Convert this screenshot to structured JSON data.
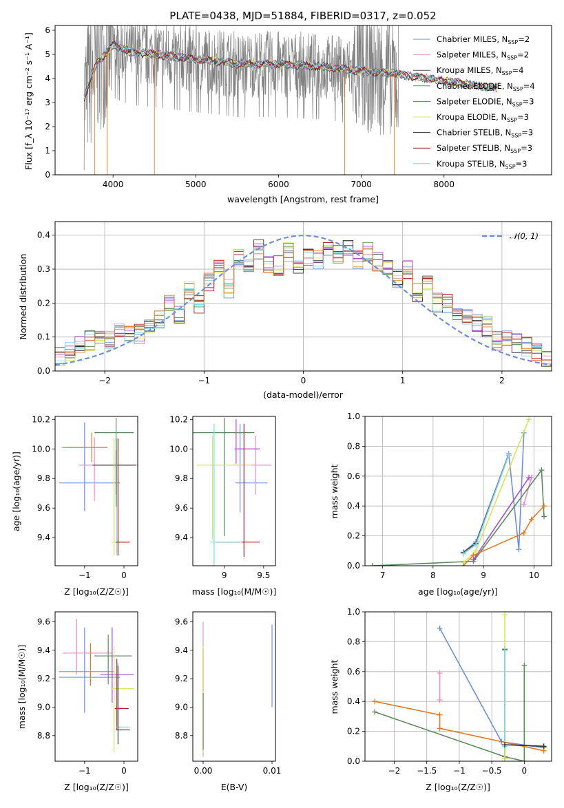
{
  "chart_data": [
    {
      "id": "spectrum",
      "type": "line",
      "title": "PLATE=0438, MJD=51884, FIBERID=0317, z=0.052",
      "xlabel": "wavelength [Angstrom, rest frame]",
      "ylabel": "Flux [f_λ 10⁻¹⁷ erg cm⁻² s⁻¹ A⁻¹]",
      "xlim": [
        3300,
        9300
      ],
      "ylim": [
        0,
        6.2
      ],
      "xticks": [
        4000,
        5000,
        6000,
        7000,
        8000
      ],
      "yticks": [
        0,
        1,
        2,
        3,
        4,
        5,
        6
      ],
      "data_anchor": {
        "x": [
          3650,
          3800,
          4000,
          4200,
          4500,
          5000,
          5500,
          6000,
          6500,
          7000,
          7400,
          7800,
          8200,
          8600
        ],
        "y": [
          3.2,
          4.6,
          5.4,
          5.1,
          5.0,
          4.8,
          4.6,
          4.6,
          4.5,
          4.3,
          4.2,
          4.0,
          3.8,
          3.6
        ]
      },
      "legend_location": "upper right",
      "legend": [
        {
          "label": "Chabrier MILES, N",
          "sub": "SSP",
          "suffix": "=2",
          "color": "#6a8fdc"
        },
        {
          "label": "Salpeter MILES, N",
          "sub": "SSP",
          "suffix": "=2",
          "color": "#e88fc4"
        },
        {
          "label": "Kroupa MILES, N",
          "sub": "SSP",
          "suffix": "=4",
          "color": "#4a4a4a"
        },
        {
          "label": "Chabrier ELODIE, N",
          "sub": "SSP",
          "suffix": "=4",
          "color": "#5a8a5a"
        },
        {
          "label": "Salpeter ELODIE, N",
          "sub": "SSP",
          "suffix": "=3",
          "color": "#a64dc9"
        },
        {
          "label": "Kroupa ELODIE, N",
          "sub": "SSP",
          "suffix": "=3",
          "color": "#d6e65a"
        },
        {
          "label": "Chabrier STELIB, N",
          "sub": "SSP",
          "suffix": "=3",
          "color": "#333333"
        },
        {
          "label": "Salpeter STELIB, N",
          "sub": "SSP",
          "suffix": "=3",
          "color": "#b22222"
        },
        {
          "label": "Kroupa STELIB, N",
          "sub": "SSP",
          "suffix": "=3",
          "color": "#7fd6e0"
        }
      ]
    },
    {
      "id": "residuals",
      "type": "line",
      "xlabel": "(data-model)/error",
      "ylabel": "Normed distribution",
      "xlim": [
        -2.5,
        2.5
      ],
      "ylim": [
        0,
        0.44
      ],
      "xticks": [
        -2,
        -1,
        0,
        1,
        2
      ],
      "yticks": [
        0.0,
        0.1,
        0.2,
        0.3,
        0.4
      ],
      "grid": true,
      "legend_location": "upper right",
      "legend": [
        {
          "label": "𝒩(0, 1)",
          "color": "#6a8fdc",
          "style": "dashed"
        }
      ],
      "bin_edges": [
        -2.5,
        -2.4,
        -2.3,
        -2.2,
        -2.1,
        -2.0,
        -1.9,
        -1.8,
        -1.7,
        -1.6,
        -1.5,
        -1.4,
        -1.3,
        -1.2,
        -1.1,
        -1.0,
        -0.9,
        -0.8,
        -0.7,
        -0.6,
        -0.5,
        -0.4,
        -0.3,
        -0.2,
        -0.1,
        0.0,
        0.1,
        0.2,
        0.3,
        0.4,
        0.5,
        0.6,
        0.7,
        0.8,
        0.9,
        1.0,
        1.1,
        1.2,
        1.3,
        1.4,
        1.5,
        1.6,
        1.7,
        1.8,
        1.9,
        2.0,
        2.1,
        2.2,
        2.3,
        2.4,
        2.5
      ],
      "histogram_mean": [
        0.045,
        0.06,
        0.08,
        0.09,
        0.09,
        0.09,
        0.11,
        0.11,
        0.11,
        0.13,
        0.15,
        0.2,
        0.17,
        0.24,
        0.2,
        0.26,
        0.3,
        0.24,
        0.33,
        0.31,
        0.36,
        0.32,
        0.31,
        0.35,
        0.3,
        0.34,
        0.33,
        0.36,
        0.34,
        0.37,
        0.33,
        0.35,
        0.32,
        0.3,
        0.27,
        0.3,
        0.23,
        0.25,
        0.2,
        0.2,
        0.17,
        0.16,
        0.14,
        0.13,
        0.09,
        0.1,
        0.08,
        0.07,
        0.05,
        0.04
      ],
      "colors": [
        "#6a8fdc",
        "#e88fc4",
        "#4a4a4a",
        "#5a8a5a",
        "#a64dc9",
        "#d6e65a",
        "#333333",
        "#b22222",
        "#7fd6e0",
        "#e07b22"
      ]
    },
    {
      "id": "age-vs-Z",
      "type": "scatter",
      "xlabel": "Z [log₁₀(Z/Z☉)]",
      "ylabel": "age  [log₁₀(age/yr)]",
      "xlim": [
        -1.75,
        0.35
      ],
      "ylim": [
        9.21,
        10.22
      ],
      "xticks": [
        -1,
        0
      ],
      "yticks": [
        9.4,
        9.6,
        9.8,
        10.0,
        10.2
      ],
      "points": [
        {
          "x": -1.0,
          "y": 9.77,
          "xerr": [
            0.65,
            0.9
          ],
          "yerr": [
            0.19,
            0.41
          ],
          "color": "#6a8fdc"
        },
        {
          "x": -0.75,
          "y": 9.89,
          "xerr": [
            0.4,
            1.1
          ],
          "yerr": [
            0.24,
            0.19
          ],
          "color": "#e88fc4"
        },
        {
          "x": -0.2,
          "y": 10.11,
          "xerr": [
            0.55,
            0.45
          ],
          "yerr": [
            0.5,
            0.1
          ],
          "color": "#5a8a5a"
        },
        {
          "x": -0.82,
          "y": 10.01,
          "xerr": [
            0.75,
            0.4
          ],
          "yerr": [
            0.1,
            0.1
          ],
          "color": "#e07b22"
        },
        {
          "x": -0.2,
          "y": 9.89,
          "xerr": [
            0.6,
            0.5
          ],
          "yerr": [
            0.2,
            0.1
          ],
          "color": "#4a4a4a"
        },
        {
          "x": -0.25,
          "y": 9.37,
          "xerr": [
            0.05,
            0.3
          ],
          "yerr": [
            0.09,
            0.7
          ],
          "color": "#d6e65a"
        },
        {
          "x": -0.18,
          "y": 9.37,
          "xerr": [
            0.05,
            0.3
          ],
          "yerr": [
            0.09,
            0.7
          ],
          "color": "#7fd6e0"
        },
        {
          "x": -0.15,
          "y": 9.37,
          "xerr": [
            0.05,
            0.3
          ],
          "yerr": [
            0.09,
            0.7
          ],
          "color": "#b22222"
        }
      ]
    },
    {
      "id": "age-vs-mass",
      "type": "scatter",
      "xlabel": "mass [log₁₀(M/M☉)]",
      "xlim": [
        8.6,
        9.65
      ],
      "ylim": [
        9.21,
        10.22
      ],
      "xticks": [
        9.0,
        9.5
      ],
      "yticks": [
        9.4,
        9.6,
        9.8,
        10.0,
        10.2
      ],
      "points": [
        {
          "x": 9.2,
          "y": 9.77,
          "xerr": [
            0.06,
            0.35
          ],
          "yerr": [
            0.2,
            0.4
          ],
          "color": "#6a8fdc"
        },
        {
          "x": 9.4,
          "y": 9.89,
          "xerr": [
            0.3,
            0.2
          ],
          "yerr": [
            0.2,
            0.2
          ],
          "color": "#e88fc4"
        },
        {
          "x": 9.0,
          "y": 10.11,
          "xerr": [
            0.4,
            0.38
          ],
          "yerr": [
            0.7,
            0.1
          ],
          "color": "#5a8a5a"
        },
        {
          "x": 9.15,
          "y": 10.0,
          "xerr": [
            0.02,
            0.3
          ],
          "yerr": [
            0.1,
            0.2
          ],
          "color": "#a64dc9"
        },
        {
          "x": 8.85,
          "y": 9.89,
          "xerr": [
            0.2,
            0.5
          ],
          "yerr": [
            0.5,
            0.2
          ],
          "color": "#d6e65a"
        },
        {
          "x": 9.25,
          "y": 9.37,
          "xerr": [
            0.35,
            0.2
          ],
          "yerr": [
            0.1,
            0.8
          ],
          "color": "#b22222"
        },
        {
          "x": 8.87,
          "y": 9.37,
          "xerr": [
            0.05,
            0.35
          ],
          "yerr": [
            0.2,
            0.8
          ],
          "color": "#7fd6e0"
        }
      ]
    },
    {
      "id": "weight-vs-age",
      "type": "line",
      "xlabel": "age  [log₁₀(age/yr)]",
      "ylabel": "mass weight",
      "xlim": [
        6.65,
        10.35
      ],
      "ylim": [
        0,
        1.0
      ],
      "xticks": [
        7,
        8,
        9,
        10
      ],
      "yticks": [
        0.0,
        0.2,
        0.4,
        0.6,
        0.8,
        1.0
      ],
      "grid": true,
      "series": [
        {
          "color": "#6a8fdc",
          "x": [
            8.6,
            8.85,
            9.5,
            9.7,
            9.8
          ],
          "y": [
            0.09,
            0.16,
            0.75,
            0.11,
            0.89
          ]
        },
        {
          "color": "#e88fc4",
          "x": [
            9.8,
            9.95
          ],
          "y": [
            0.41,
            0.59
          ]
        },
        {
          "color": "#4a4a4a",
          "x": [
            8.6,
            8.85,
            9.5
          ],
          "y": [
            0.09,
            0.15,
            0.74
          ]
        },
        {
          "color": "#5a8a5a",
          "x": [
            6.8,
            8.8,
            10.15,
            10.2
          ],
          "y": [
            0.0,
            0.03,
            0.64,
            0.33
          ]
        },
        {
          "color": "#a64dc9",
          "x": [
            8.8,
            9.9
          ],
          "y": [
            0.04,
            0.59
          ]
        },
        {
          "color": "#d6e65a",
          "x": [
            8.6,
            8.85,
            9.9
          ],
          "y": [
            0.02,
            0.1,
            0.98
          ]
        },
        {
          "color": "#e07b22",
          "x": [
            8.6,
            8.8,
            9.8,
            9.95,
            10.2
          ],
          "y": [
            0.0,
            0.07,
            0.22,
            0.31,
            0.4
          ]
        },
        {
          "color": "#7fd6e0",
          "x": [
            8.6,
            8.85,
            9.5
          ],
          "y": [
            0.08,
            0.14,
            0.74
          ]
        }
      ]
    },
    {
      "id": "mass-vs-Z",
      "type": "scatter",
      "xlabel": "Z [log₁₀(Z/Z☉)]",
      "ylabel": "mass [log₁₀(M/M☉)]",
      "xlim": [
        -1.75,
        0.35
      ],
      "ylim": [
        8.62,
        9.67
      ],
      "xticks": [
        -1,
        0
      ],
      "yticks": [
        8.8,
        9.0,
        9.2,
        9.4,
        9.6
      ],
      "points": [
        {
          "x": -1.0,
          "y": 9.21,
          "xerr": [
            0.65,
            0.9
          ],
          "yerr": [
            0.25,
            0.35
          ],
          "color": "#6a8fdc"
        },
        {
          "x": -1.2,
          "y": 9.38,
          "xerr": [
            0.35,
            0.9
          ],
          "yerr": [
            0.15,
            0.24
          ],
          "color": "#e88fc4"
        },
        {
          "x": -0.4,
          "y": 9.36,
          "xerr": [
            0.35,
            0.6
          ],
          "yerr": [
            0.2,
            0.15
          ],
          "color": "#5a8a5a"
        },
        {
          "x": -0.85,
          "y": 9.25,
          "xerr": [
            0.8,
            0.6
          ],
          "yerr": [
            0.1,
            0.2
          ],
          "color": "#e07b22"
        },
        {
          "x": -0.3,
          "y": 9.23,
          "xerr": [
            0.3,
            0.55
          ],
          "yerr": [
            0.2,
            0.33
          ],
          "color": "#a64dc9"
        },
        {
          "x": -0.25,
          "y": 9.13,
          "xerr": [
            0.05,
            0.5
          ],
          "yerr": [
            0.45,
            0.3
          ],
          "color": "#d6e65a"
        },
        {
          "x": -0.18,
          "y": 8.99,
          "xerr": [
            0.05,
            0.3
          ],
          "yerr": [
            0.15,
            0.35
          ],
          "color": "#b22222"
        },
        {
          "x": -0.15,
          "y": 8.86,
          "xerr": [
            0.05,
            0.3
          ],
          "yerr": [
            0.1,
            0.45
          ],
          "color": "#7fd6e0"
        },
        {
          "x": -0.15,
          "y": 8.84,
          "xerr": [
            0.05,
            0.3
          ],
          "yerr": [
            0.1,
            0.45
          ],
          "color": "#4a4a4a"
        }
      ]
    },
    {
      "id": "mass-vs-ebv",
      "type": "scatter",
      "xlabel": "E(B-V)",
      "xlim": [
        -0.0015,
        0.0105
      ],
      "ylim": [
        8.62,
        9.67
      ],
      "xticks": [
        0.0,
        0.01
      ],
      "xticklabels": [
        "0.00",
        "0.01"
      ],
      "yticks": [
        8.8,
        9.0,
        9.2,
        9.4,
        9.6
      ],
      "points": [
        {
          "x": 0.0,
          "y": 9.25,
          "yerr": [
            0.6,
            0.35
          ],
          "color": "#e88fc4"
        },
        {
          "x": 0.0,
          "y": 9.21,
          "yerr": [
            0.1,
            0.2
          ],
          "color": "#b22222"
        },
        {
          "x": 0.0,
          "y": 9.13,
          "yerr": [
            0.45,
            0.3
          ],
          "color": "#d6e65a"
        },
        {
          "x": 0.0,
          "y": 8.9,
          "yerr": [
            0.2,
            0.2
          ],
          "color": "#5a8a5a"
        },
        {
          "x": 0.01,
          "y": 9.2,
          "yerr": [
            0.2,
            0.38
          ],
          "color": "#6a8fdc"
        }
      ]
    },
    {
      "id": "weight-vs-Z",
      "type": "line",
      "xlabel": "Z [log₁₀(Z/Z☉)]",
      "ylabel": "mass weight",
      "xlim": [
        -2.45,
        0.42
      ],
      "ylim": [
        0,
        1.0
      ],
      "xticks": [
        -2.0,
        -1.5,
        -1.0,
        -0.5,
        0.0
      ],
      "yticks": [
        0.0,
        0.2,
        0.4,
        0.6,
        0.8,
        1.0
      ],
      "grid": true,
      "series": [
        {
          "color": "#6a8fdc",
          "x": [
            -1.3,
            -0.35,
            0.3
          ],
          "y": [
            0.89,
            0.13,
            0.09
          ]
        },
        {
          "color": "#e88fc4",
          "x": [
            -1.3,
            -1.3
          ],
          "y": [
            0.41,
            0.59
          ]
        },
        {
          "color": "#4a4a4a",
          "x": [
            -0.3,
            -0.3
          ],
          "y": [
            0.02,
            0.75
          ]
        },
        {
          "color": "#5a8a5a",
          "x": [
            -2.3,
            -0.3,
            0.0,
            0.0
          ],
          "y": [
            0.33,
            0.03,
            0.0,
            0.64
          ]
        },
        {
          "color": "#d6e65a",
          "x": [
            -0.3,
            -0.3
          ],
          "y": [
            0.02,
            0.98
          ]
        },
        {
          "color": "#e07b22",
          "x": [
            -2.3,
            -1.3,
            -1.3,
            0.3
          ],
          "y": [
            0.4,
            0.31,
            0.22,
            0.07
          ]
        },
        {
          "color": "#7fd6e0",
          "x": [
            -0.3,
            -0.3
          ],
          "y": [
            0.1,
            0.74
          ]
        },
        {
          "color": "#333333",
          "x": [
            -0.3,
            0.3
          ],
          "y": [
            0.11,
            0.1
          ]
        }
      ]
    }
  ]
}
